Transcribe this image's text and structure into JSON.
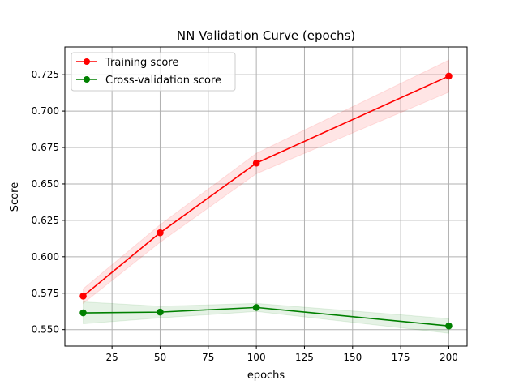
{
  "chart_data": {
    "type": "line",
    "title": "NN Validation Curve (epochs)",
    "xlabel": "epochs",
    "ylabel": "Score",
    "xlim": [
      0.5,
      209.5
    ],
    "ylim": [
      0.5387,
      0.744
    ],
    "xticks": [
      25,
      50,
      75,
      100,
      125,
      150,
      175,
      200
    ],
    "yticks": [
      0.55,
      0.575,
      0.6,
      0.625,
      0.65,
      0.675,
      0.7,
      0.725
    ],
    "ytick_labels": [
      "0.550",
      "0.575",
      "0.600",
      "0.625",
      "0.650",
      "0.675",
      "0.700",
      "0.725"
    ],
    "grid": true,
    "legend_position": "upper-left",
    "x": [
      10,
      50,
      100,
      200
    ],
    "series": [
      {
        "name": "Training score",
        "color": "#ff0000",
        "values": [
          0.573,
          0.6165,
          0.6643,
          0.724
        ],
        "band_lower": [
          0.568,
          0.61,
          0.657,
          0.713
        ],
        "band_upper": [
          0.578,
          0.622,
          0.671,
          0.735
        ]
      },
      {
        "name": "Cross-validation score",
        "color": "#008000",
        "values": [
          0.5615,
          0.562,
          0.5652,
          0.5525
        ],
        "band_lower": [
          0.554,
          0.558,
          0.5625,
          0.5475
        ],
        "band_upper": [
          0.569,
          0.566,
          0.568,
          0.5575
        ]
      }
    ]
  }
}
